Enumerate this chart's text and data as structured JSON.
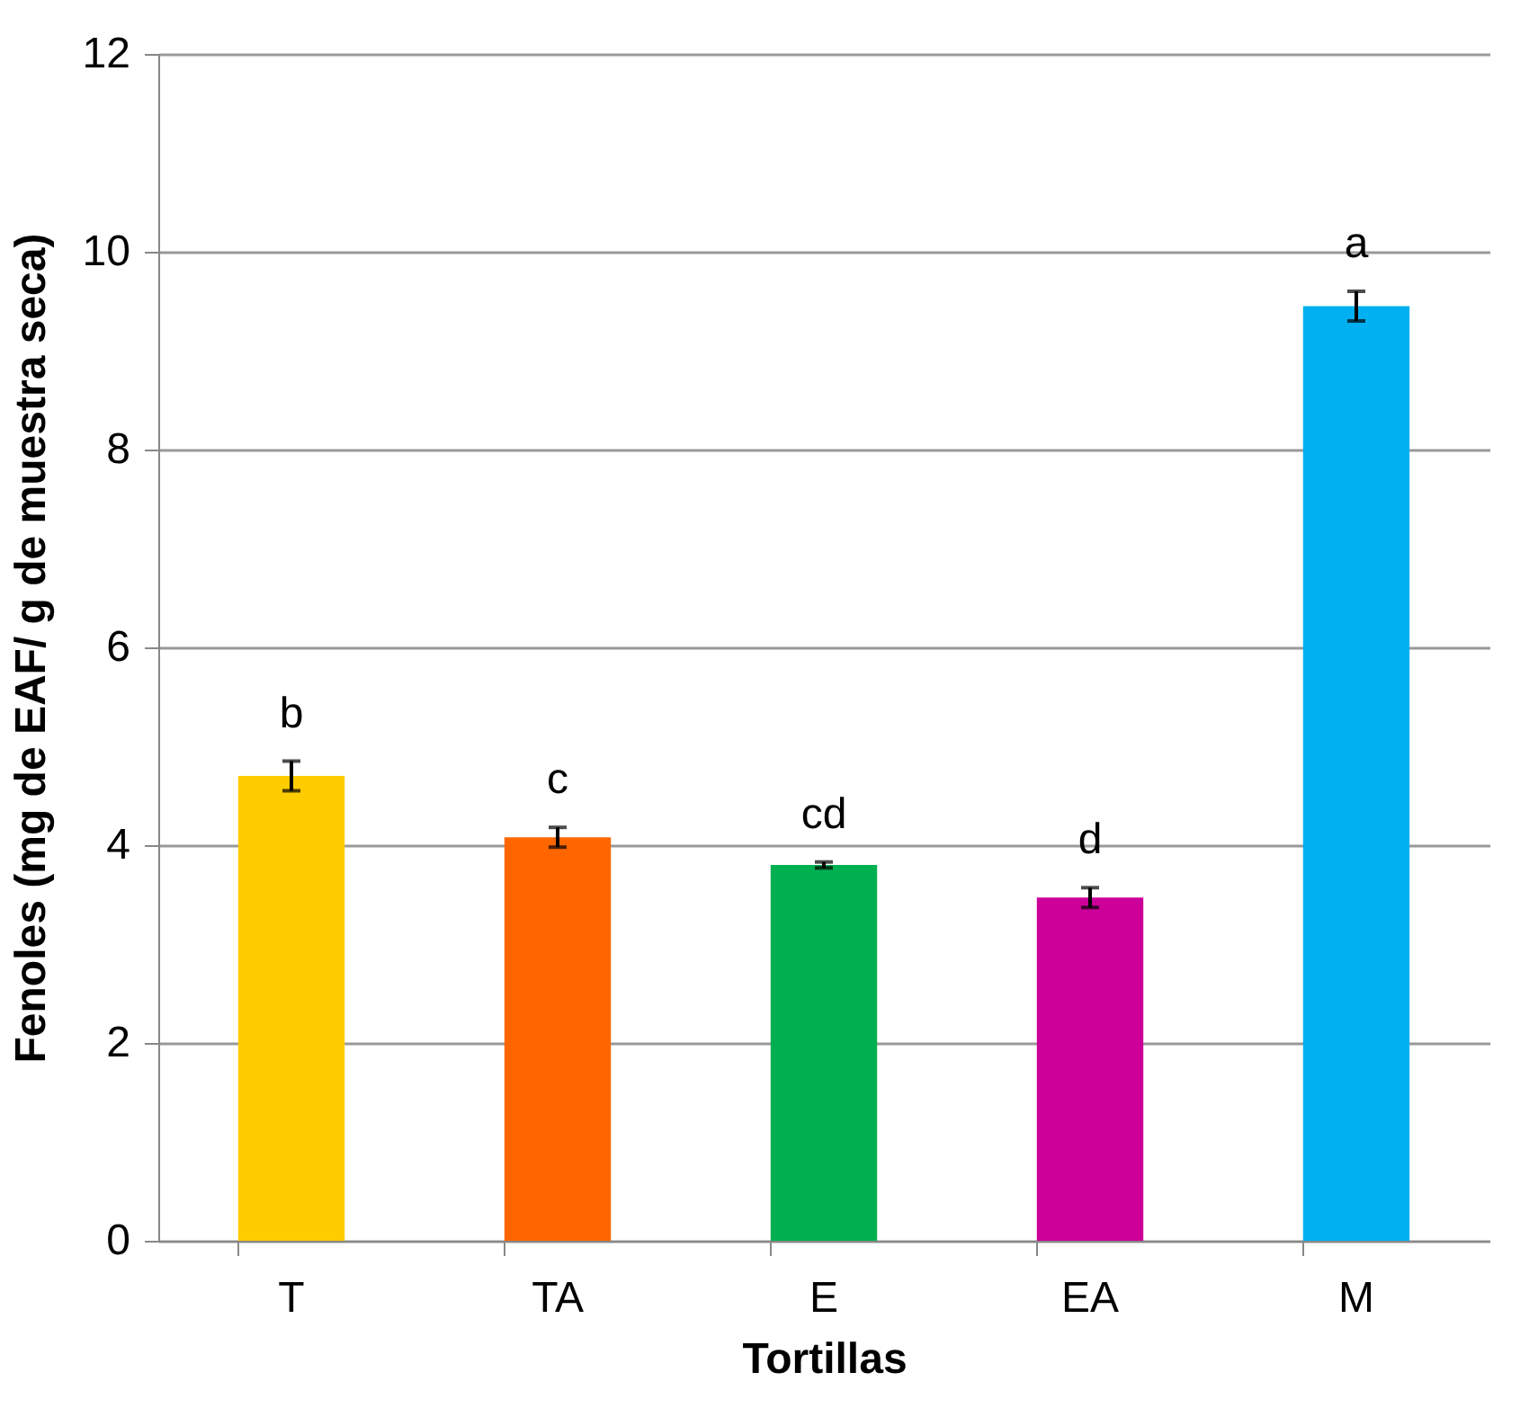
{
  "chart_data": {
    "type": "bar",
    "xlabel": "Tortillas",
    "ylabel": "Fenoles (mg de EAF/ g de muestra seca)",
    "categories": [
      "T",
      "TA",
      "E",
      "EA",
      "M"
    ],
    "values": [
      4.7,
      4.08,
      3.8,
      3.47,
      9.45
    ],
    "colors": [
      "#ffcc00",
      "#ff6600",
      "#00b050",
      "#cc0099",
      "#00b0f0"
    ],
    "errors": [
      0.15,
      0.1,
      0.03,
      0.1,
      0.15
    ],
    "ylim": [
      0,
      12
    ],
    "yticks": [
      0,
      2,
      4,
      6,
      8,
      10,
      12
    ],
    "grid": "y",
    "annotations": [
      "b",
      "c",
      "cd",
      "d",
      "a"
    ]
  }
}
